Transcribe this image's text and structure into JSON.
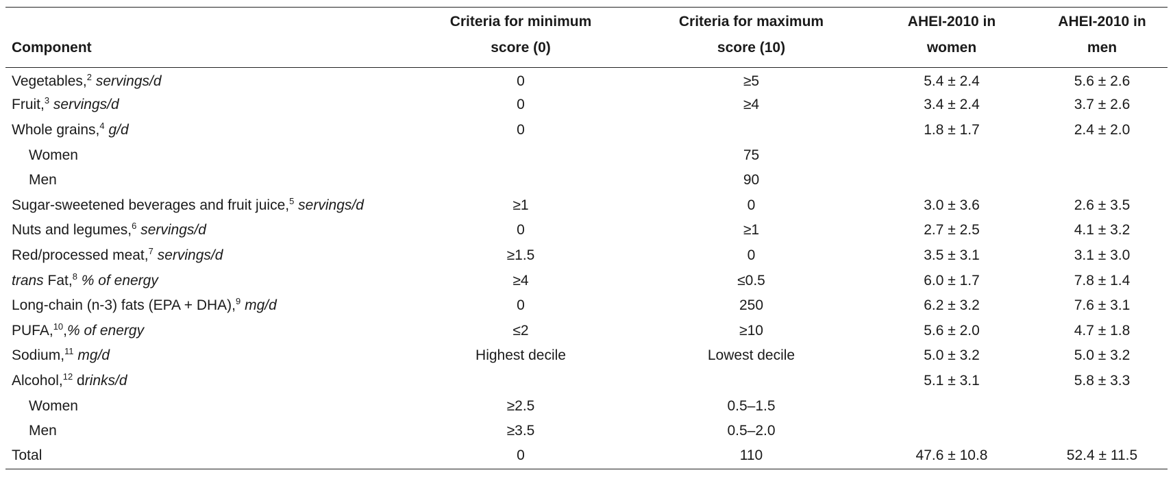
{
  "table": {
    "headers": {
      "component": "Component",
      "min_line1": "Criteria for minimum",
      "min_line2": "score (0)",
      "max_line1": "Criteria for maximum",
      "max_line2": "score (10)",
      "women_line1": "AHEI-2010 in",
      "women_line2": "women",
      "men_line1": "AHEI-2010 in",
      "men_line2": "men"
    },
    "rows": [
      {
        "lead": "",
        "name": "Vegetables,",
        "sup": "2",
        "sep": " ",
        "unit": "servings/d",
        "min": "0",
        "max": "≥5",
        "women": "5.4 ± 2.4",
        "men": "5.6 ± 2.6"
      },
      {
        "lead": "",
        "name": "Fruit,",
        "sup": "3",
        "sep": " ",
        "unit": "servings/d",
        "min": "0",
        "max": "≥4",
        "women": "3.4 ± 2.4",
        "men": "3.7 ± 2.6"
      },
      {
        "lead": "",
        "name": "Whole grains,",
        "sup": "4",
        "sep": " ",
        "unit": "g/d",
        "min": "0",
        "max": "",
        "women": "1.8 ± 1.7",
        "men": "2.4 ± 2.0"
      },
      {
        "lead": "",
        "name": "Women",
        "sup": "",
        "sep": "",
        "unit": "",
        "min": "",
        "max": "75",
        "women": "",
        "men": "",
        "sub": true
      },
      {
        "lead": "",
        "name": "Men",
        "sup": "",
        "sep": "",
        "unit": "",
        "min": "",
        "max": "90",
        "women": "",
        "men": "",
        "sub": true
      },
      {
        "lead": "",
        "name": "Sugar-sweetened beverages and fruit juice,",
        "sup": "5",
        "sep": " ",
        "unit": "servings/d",
        "min": "≥1",
        "max": "0",
        "women": "3.0 ± 3.6",
        "men": "2.6 ± 3.5"
      },
      {
        "lead": "",
        "name": "Nuts and legumes,",
        "sup": "6",
        "sep": " ",
        "unit": "servings/d",
        "min": "0",
        "max": "≥1",
        "women": "2.7 ± 2.5",
        "men": "4.1 ± 3.2"
      },
      {
        "lead": "",
        "name": "Red/processed meat,",
        "sup": "7",
        "sep": " ",
        "unit": "servings/d",
        "min": "≥1.5",
        "max": "0",
        "women": "3.5 ± 3.1",
        "men": "3.1 ± 3.0"
      },
      {
        "lead": "trans",
        "name": " Fat,",
        "sup": "8",
        "sep": " ",
        "unit": "% of energy",
        "min": "≥4",
        "max": "≤0.5",
        "women": "6.0 ± 1.7",
        "men": "7.8 ± 1.4"
      },
      {
        "lead": "",
        "name": "Long-chain (n-3) fats (EPA + DHA),",
        "sup": "9",
        "sep": " ",
        "unit": "mg/d",
        "min": "0",
        "max": "250",
        "women": "6.2 ± 3.2",
        "men": "7.6 ± 3.1"
      },
      {
        "lead": "",
        "name": "PUFA,",
        "sup": "10",
        "sep": ",",
        "unit": "% of energy",
        "min": "≤2",
        "max": "≥10",
        "women": "5.6 ± 2.0",
        "men": "4.7 ± 1.8"
      },
      {
        "lead": "",
        "name": "Sodium,",
        "sup": "11",
        "sep": " ",
        "unit": "mg/d",
        "min": "Highest decile",
        "max": "Lowest decile",
        "women": "5.0 ± 3.2",
        "men": "5.0 ± 3.2"
      },
      {
        "lead": "",
        "name": "Alcohol,",
        "sup": "12",
        "sep": " d",
        "unit": "rinks/d",
        "min": "",
        "max": "",
        "women": "5.1 ± 3.1",
        "men": "5.8 ± 3.3"
      },
      {
        "lead": "",
        "name": "Women",
        "sup": "",
        "sep": "",
        "unit": "",
        "min": "≥2.5",
        "max": "0.5–1.5",
        "women": "",
        "men": "",
        "sub": true
      },
      {
        "lead": "",
        "name": "Men",
        "sup": "",
        "sep": "",
        "unit": "",
        "min": "≥3.5",
        "max": "0.5–2.0",
        "women": "",
        "men": "",
        "sub": true
      },
      {
        "lead": "",
        "name": "Total",
        "sup": "",
        "sep": "",
        "unit": "",
        "min": "0",
        "max": "110",
        "women": "47.6 ± 10.8",
        "men": "52.4 ± 11.5"
      }
    ]
  }
}
